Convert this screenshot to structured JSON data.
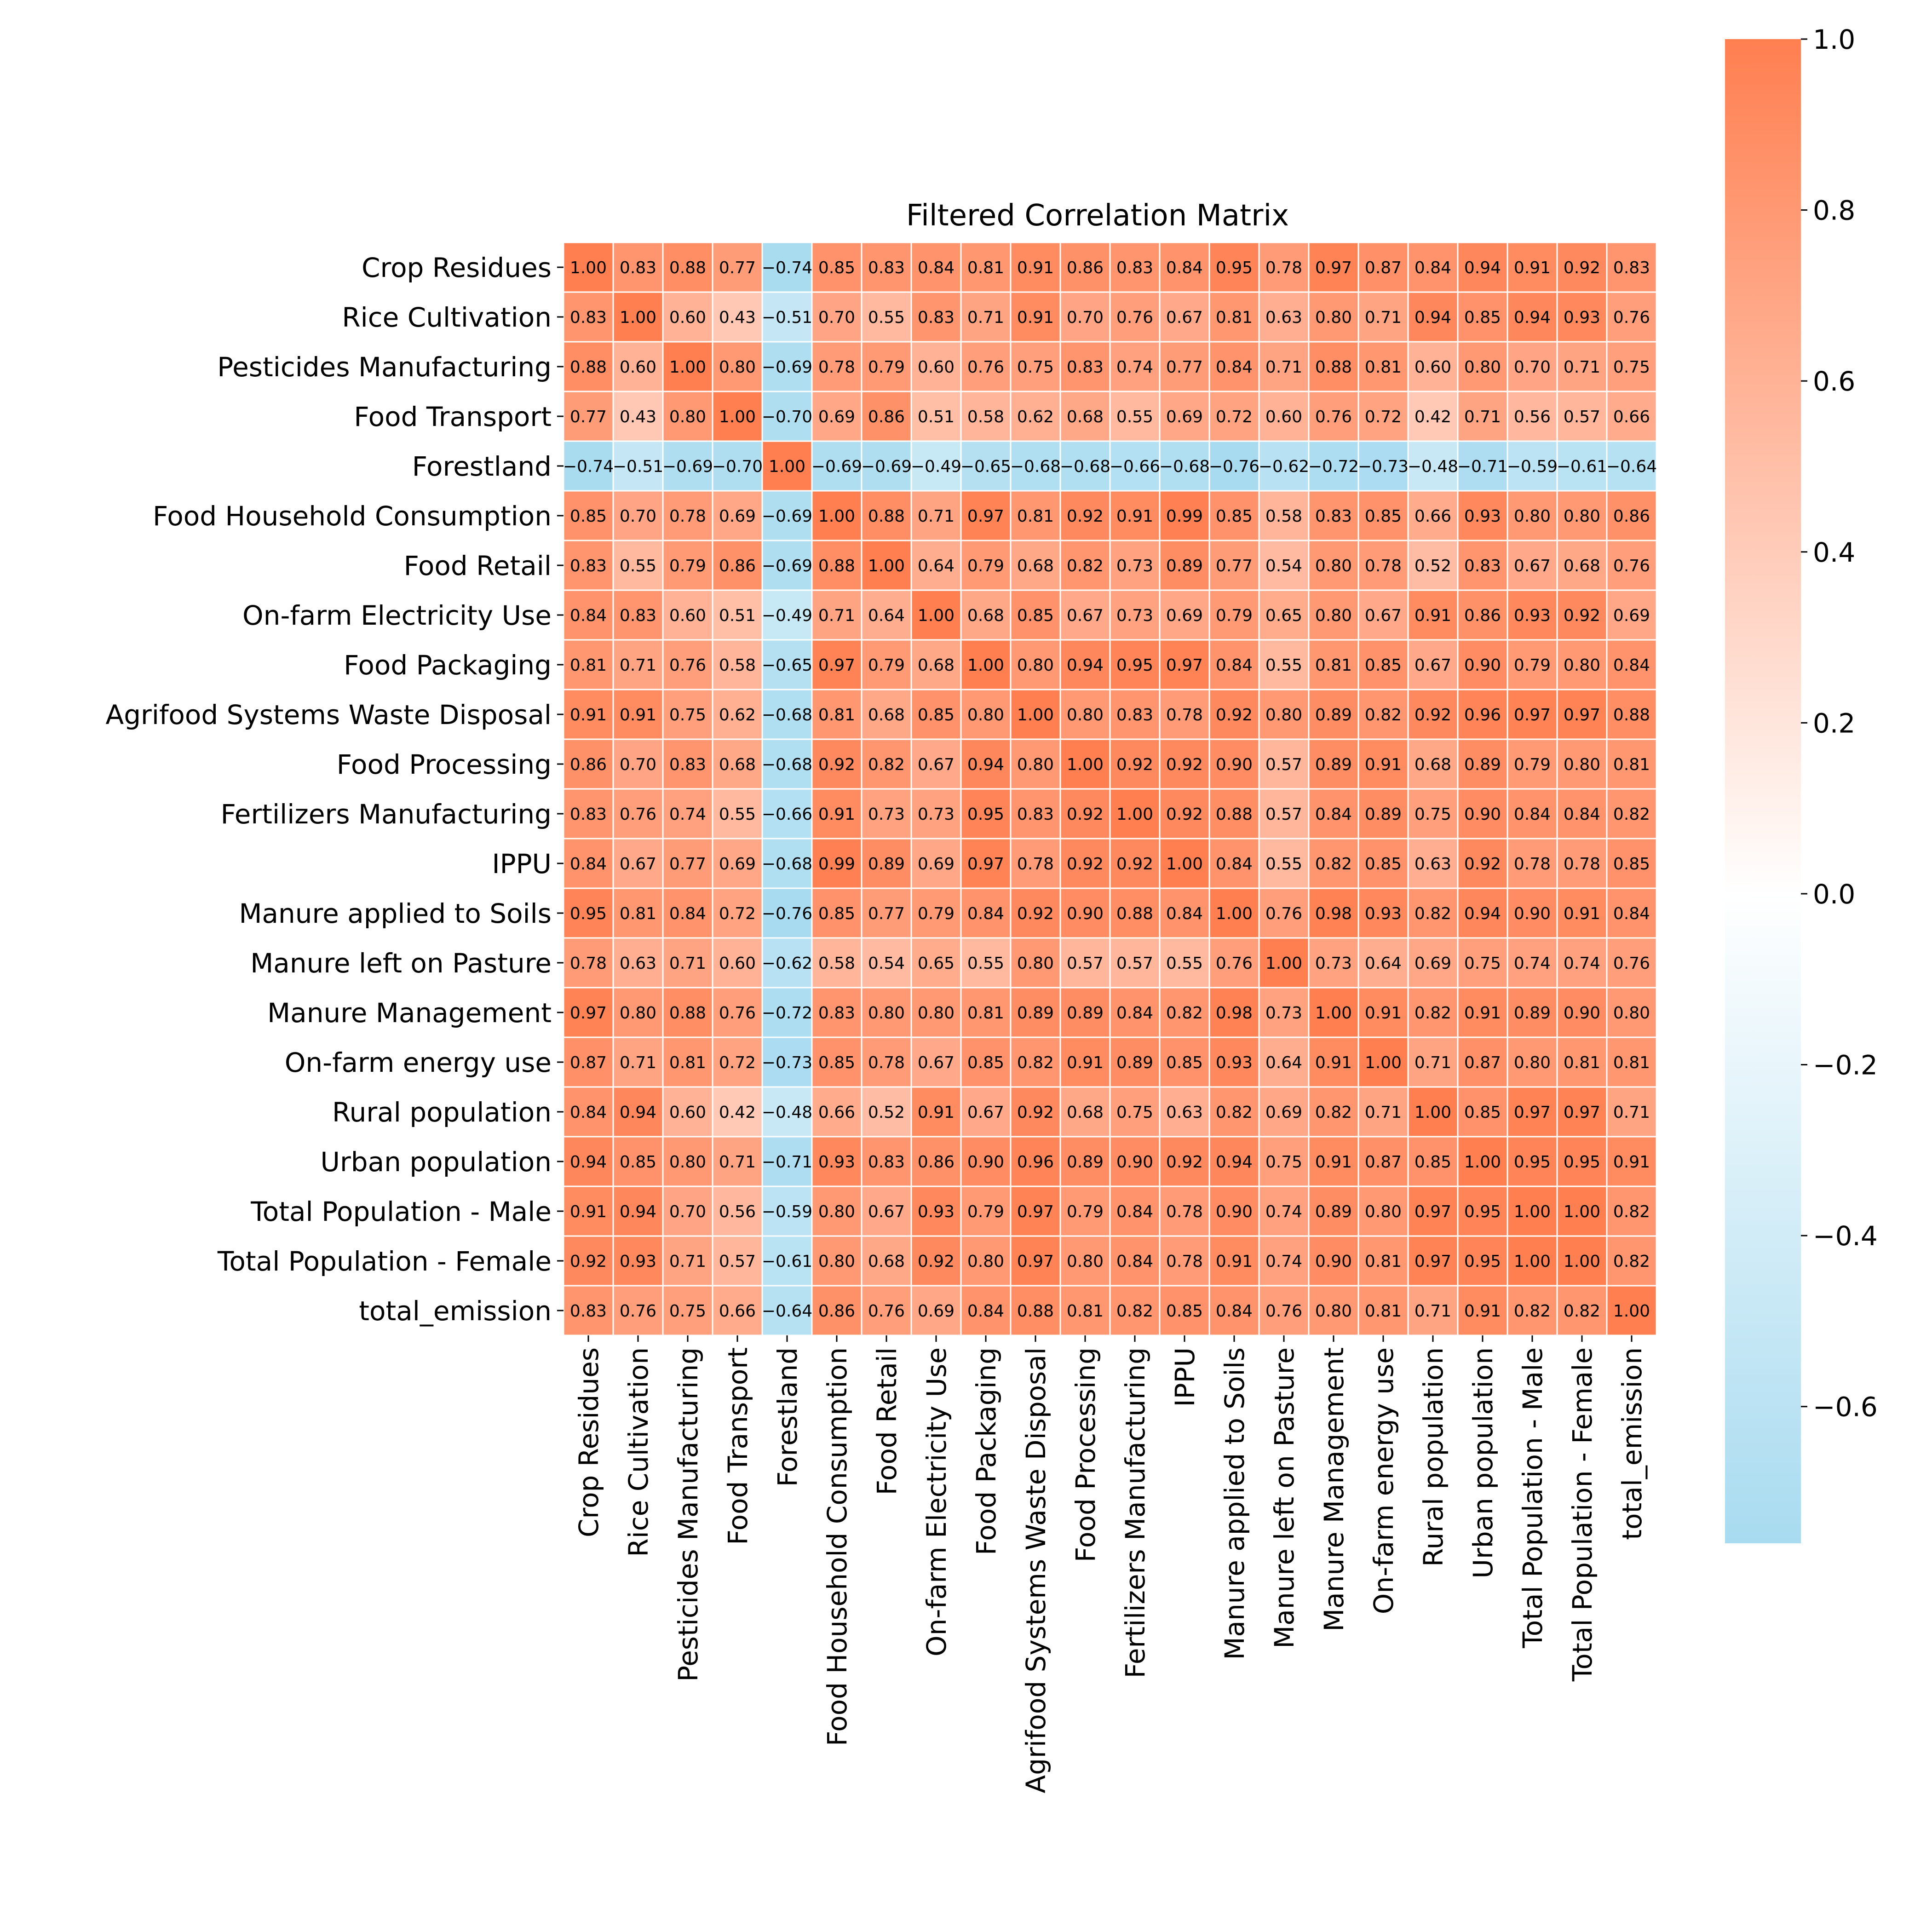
{
  "chart_data": {
    "type": "heatmap",
    "title": "Filtered Correlation Matrix",
    "labels": [
      "Crop Residues",
      "Rice Cultivation",
      "Pesticides Manufacturing",
      "Food Transport",
      "Forestland",
      "Food Household Consumption",
      "Food Retail",
      "On-farm Electricity Use",
      "Food Packaging",
      "Agrifood Systems Waste Disposal",
      "Food Processing",
      "Fertilizers Manufacturing",
      "IPPU",
      "Manure applied to Soils",
      "Manure left on Pasture",
      "Manure Management",
      "On-farm energy use",
      "Rural population",
      "Urban population",
      "Total Population - Male",
      "Total Population - Female",
      "total_emission"
    ],
    "values": [
      [
        1.0,
        0.83,
        0.88,
        0.77,
        -0.74,
        0.85,
        0.83,
        0.84,
        0.81,
        0.91,
        0.86,
        0.83,
        0.84,
        0.95,
        0.78,
        0.97,
        0.87,
        0.84,
        0.94,
        0.91,
        0.92,
        0.83
      ],
      [
        0.83,
        1.0,
        0.6,
        0.43,
        -0.51,
        0.7,
        0.55,
        0.83,
        0.71,
        0.91,
        0.7,
        0.76,
        0.67,
        0.81,
        0.63,
        0.8,
        0.71,
        0.94,
        0.85,
        0.94,
        0.93,
        0.76
      ],
      [
        0.88,
        0.6,
        1.0,
        0.8,
        -0.69,
        0.78,
        0.79,
        0.6,
        0.76,
        0.75,
        0.83,
        0.74,
        0.77,
        0.84,
        0.71,
        0.88,
        0.81,
        0.6,
        0.8,
        0.7,
        0.71,
        0.75
      ],
      [
        0.77,
        0.43,
        0.8,
        1.0,
        -0.7,
        0.69,
        0.86,
        0.51,
        0.58,
        0.62,
        0.68,
        0.55,
        0.69,
        0.72,
        0.6,
        0.76,
        0.72,
        0.42,
        0.71,
        0.56,
        0.57,
        0.66
      ],
      [
        -0.74,
        -0.51,
        -0.69,
        -0.7,
        1.0,
        -0.69,
        -0.69,
        -0.49,
        -0.65,
        -0.68,
        -0.68,
        -0.66,
        -0.68,
        -0.76,
        -0.62,
        -0.72,
        -0.73,
        -0.48,
        -0.71,
        -0.59,
        -0.61,
        -0.64
      ],
      [
        0.85,
        0.7,
        0.78,
        0.69,
        -0.69,
        1.0,
        0.88,
        0.71,
        0.97,
        0.81,
        0.92,
        0.91,
        0.99,
        0.85,
        0.58,
        0.83,
        0.85,
        0.66,
        0.93,
        0.8,
        0.8,
        0.86
      ],
      [
        0.83,
        0.55,
        0.79,
        0.86,
        -0.69,
        0.88,
        1.0,
        0.64,
        0.79,
        0.68,
        0.82,
        0.73,
        0.89,
        0.77,
        0.54,
        0.8,
        0.78,
        0.52,
        0.83,
        0.67,
        0.68,
        0.76
      ],
      [
        0.84,
        0.83,
        0.6,
        0.51,
        -0.49,
        0.71,
        0.64,
        1.0,
        0.68,
        0.85,
        0.67,
        0.73,
        0.69,
        0.79,
        0.65,
        0.8,
        0.67,
        0.91,
        0.86,
        0.93,
        0.92,
        0.69
      ],
      [
        0.81,
        0.71,
        0.76,
        0.58,
        -0.65,
        0.97,
        0.79,
        0.68,
        1.0,
        0.8,
        0.94,
        0.95,
        0.97,
        0.84,
        0.55,
        0.81,
        0.85,
        0.67,
        0.9,
        0.79,
        0.8,
        0.84
      ],
      [
        0.91,
        0.91,
        0.75,
        0.62,
        -0.68,
        0.81,
        0.68,
        0.85,
        0.8,
        1.0,
        0.8,
        0.83,
        0.78,
        0.92,
        0.8,
        0.89,
        0.82,
        0.92,
        0.96,
        0.97,
        0.97,
        0.88
      ],
      [
        0.86,
        0.7,
        0.83,
        0.68,
        -0.68,
        0.92,
        0.82,
        0.67,
        0.94,
        0.8,
        1.0,
        0.92,
        0.92,
        0.9,
        0.57,
        0.89,
        0.91,
        0.68,
        0.89,
        0.79,
        0.8,
        0.81
      ],
      [
        0.83,
        0.76,
        0.74,
        0.55,
        -0.66,
        0.91,
        0.73,
        0.73,
        0.95,
        0.83,
        0.92,
        1.0,
        0.92,
        0.88,
        0.57,
        0.84,
        0.89,
        0.75,
        0.9,
        0.84,
        0.84,
        0.82
      ],
      [
        0.84,
        0.67,
        0.77,
        0.69,
        -0.68,
        0.99,
        0.89,
        0.69,
        0.97,
        0.78,
        0.92,
        0.92,
        1.0,
        0.84,
        0.55,
        0.82,
        0.85,
        0.63,
        0.92,
        0.78,
        0.78,
        0.85
      ],
      [
        0.95,
        0.81,
        0.84,
        0.72,
        -0.76,
        0.85,
        0.77,
        0.79,
        0.84,
        0.92,
        0.9,
        0.88,
        0.84,
        1.0,
        0.76,
        0.98,
        0.93,
        0.82,
        0.94,
        0.9,
        0.91,
        0.84
      ],
      [
        0.78,
        0.63,
        0.71,
        0.6,
        -0.62,
        0.58,
        0.54,
        0.65,
        0.55,
        0.8,
        0.57,
        0.57,
        0.55,
        0.76,
        1.0,
        0.73,
        0.64,
        0.69,
        0.75,
        0.74,
        0.74,
        0.76
      ],
      [
        0.97,
        0.8,
        0.88,
        0.76,
        -0.72,
        0.83,
        0.8,
        0.8,
        0.81,
        0.89,
        0.89,
        0.84,
        0.82,
        0.98,
        0.73,
        1.0,
        0.91,
        0.82,
        0.91,
        0.89,
        0.9,
        0.8
      ],
      [
        0.87,
        0.71,
        0.81,
        0.72,
        -0.73,
        0.85,
        0.78,
        0.67,
        0.85,
        0.82,
        0.91,
        0.89,
        0.85,
        0.93,
        0.64,
        0.91,
        1.0,
        0.71,
        0.87,
        0.8,
        0.81,
        0.81
      ],
      [
        0.84,
        0.94,
        0.6,
        0.42,
        -0.48,
        0.66,
        0.52,
        0.91,
        0.67,
        0.92,
        0.68,
        0.75,
        0.63,
        0.82,
        0.69,
        0.82,
        0.71,
        1.0,
        0.85,
        0.97,
        0.97,
        0.71
      ],
      [
        0.94,
        0.85,
        0.8,
        0.71,
        -0.71,
        0.93,
        0.83,
        0.86,
        0.9,
        0.96,
        0.89,
        0.9,
        0.92,
        0.94,
        0.75,
        0.91,
        0.87,
        0.85,
        1.0,
        0.95,
        0.95,
        0.91
      ],
      [
        0.91,
        0.94,
        0.7,
        0.56,
        -0.59,
        0.8,
        0.67,
        0.93,
        0.79,
        0.97,
        0.79,
        0.84,
        0.78,
        0.9,
        0.74,
        0.89,
        0.8,
        0.97,
        0.95,
        1.0,
        1.0,
        0.82
      ],
      [
        0.92,
        0.93,
        0.71,
        0.57,
        -0.61,
        0.8,
        0.68,
        0.92,
        0.8,
        0.97,
        0.8,
        0.84,
        0.78,
        0.91,
        0.74,
        0.9,
        0.81,
        0.97,
        0.95,
        1.0,
        1.0,
        0.82
      ],
      [
        0.83,
        0.76,
        0.75,
        0.66,
        -0.64,
        0.86,
        0.76,
        0.69,
        0.84,
        0.88,
        0.81,
        0.82,
        0.85,
        0.84,
        0.76,
        0.8,
        0.81,
        0.71,
        0.91,
        0.82,
        0.82,
        1.0
      ]
    ],
    "value_format": "2 decimals",
    "colorbar": {
      "min": -0.76,
      "max": 1.0,
      "ticks": [
        1.0,
        0.8,
        0.6,
        0.4,
        0.2,
        0.0,
        -0.2,
        -0.4,
        -0.6
      ],
      "tick_labels": [
        "1.0",
        "0.8",
        "0.6",
        "0.4",
        "0.2",
        "0.0",
        "−0.2",
        "−0.4",
        "−0.6"
      ]
    },
    "colors": {
      "negative": "#a8dbf0",
      "zero": "#ffffff",
      "positive": "#ff7f50",
      "cell_border": "#ffffff"
    },
    "grid": false,
    "legend": "colorbar right"
  }
}
